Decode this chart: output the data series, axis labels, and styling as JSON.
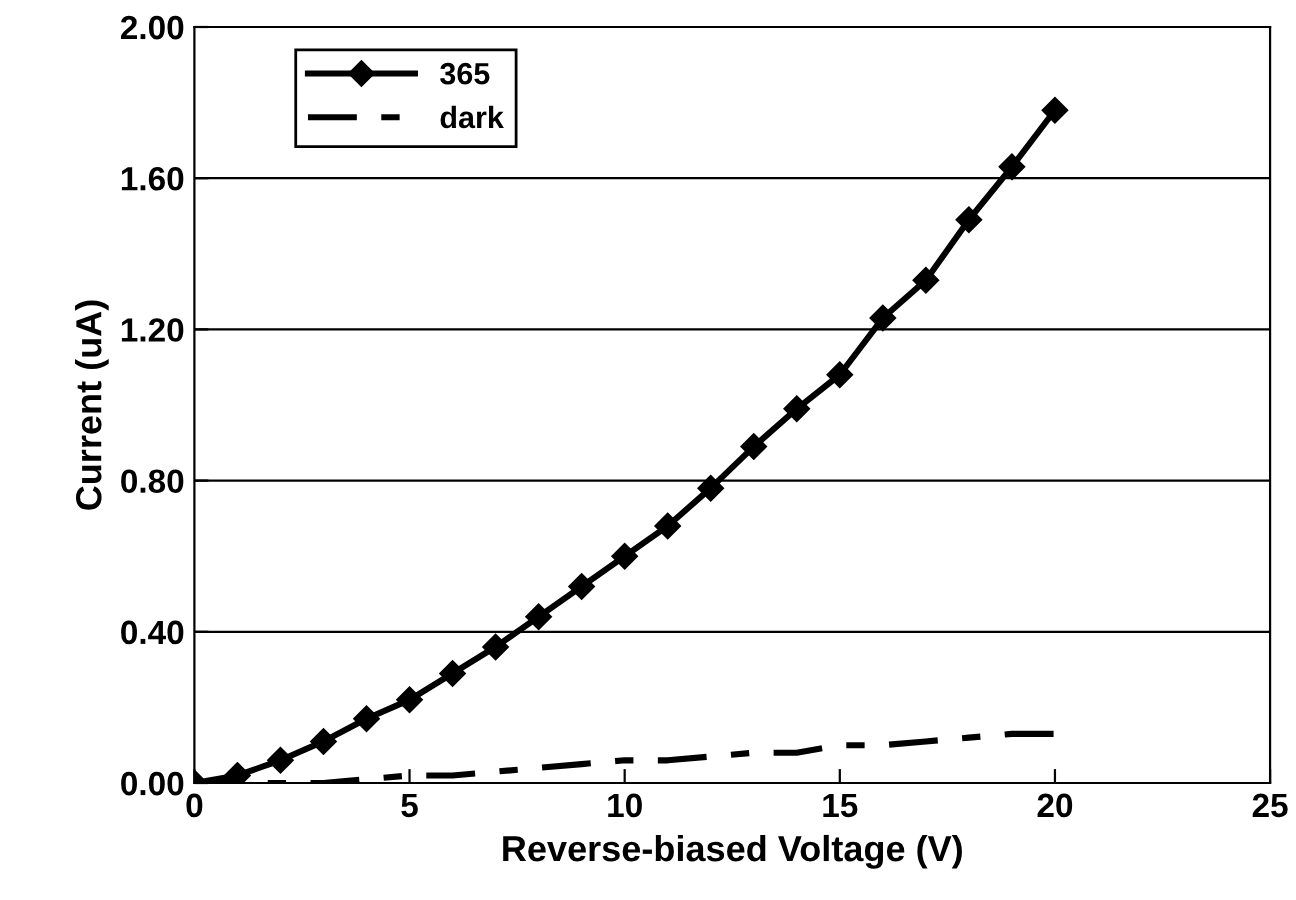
{
  "chart_data": {
    "type": "line",
    "xlabel": "Reverse-biased Voltage (V)",
    "ylabel": "Current (uA)",
    "x": [
      0,
      1,
      2,
      3,
      4,
      5,
      6,
      7,
      8,
      9,
      10,
      11,
      12,
      13,
      14,
      15,
      16,
      17,
      18,
      19,
      20
    ],
    "series": [
      {
        "name": "365",
        "color": "#000000",
        "marker": "diamond",
        "line_style": "solid",
        "values": [
          0,
          0.02,
          0.06,
          0.11,
          0.17,
          0.22,
          0.29,
          0.36,
          0.44,
          0.52,
          0.6,
          0.68,
          0.78,
          0.89,
          0.99,
          1.08,
          1.23,
          1.33,
          1.49,
          1.63,
          1.78
        ]
      },
      {
        "name": "dark",
        "color": "#000000",
        "marker": "none",
        "line_style": "dashed",
        "values": [
          0,
          0,
          0,
          0.0,
          0.01,
          0.02,
          0.02,
          0.03,
          0.04,
          0.05,
          0.06,
          0.06,
          0.07,
          0.08,
          0.08,
          0.1,
          0.1,
          0.11,
          0.12,
          0.13,
          0.13
        ]
      }
    ],
    "xlim": [
      0,
      25
    ],
    "xticks": [
      0,
      5,
      10,
      15,
      20,
      25
    ],
    "ylim": [
      0,
      2
    ],
    "yticks": [
      {
        "value": 0,
        "label": "0.00"
      },
      {
        "value": 0.4,
        "label": "0.40"
      },
      {
        "value": 0.8,
        "label": "0.80"
      },
      {
        "value": 1.2,
        "label": "1.20"
      },
      {
        "value": 1.6,
        "label": "1.60"
      },
      {
        "value": 2.0,
        "label": "2.00"
      }
    ],
    "grid": "y",
    "legend": "top left"
  }
}
